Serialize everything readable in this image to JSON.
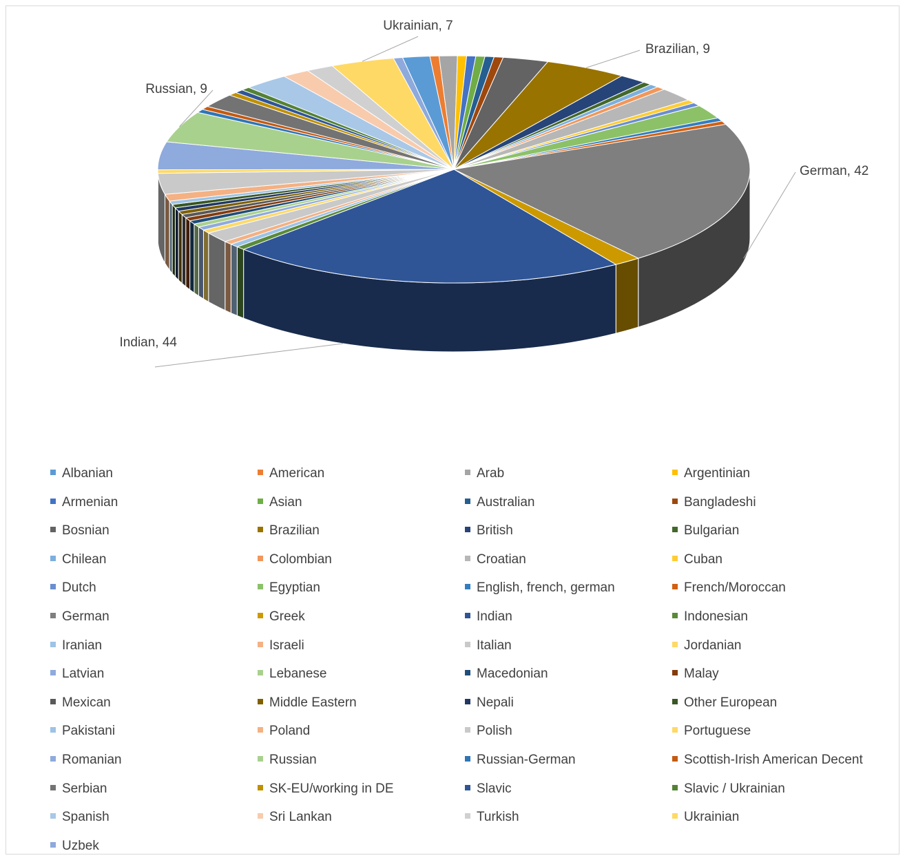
{
  "chart_data": {
    "type": "pie",
    "variant": "3d",
    "legend_position": "bottom",
    "categories": [
      "Albanian",
      "American",
      "Arab",
      "Argentinian",
      "Armenian",
      "Asian",
      "Australian",
      "Bangladeshi",
      "Bosnian",
      "Brazilian",
      "British",
      "Bulgarian",
      "Chilean",
      "Colombian",
      "Croatian",
      "Cuban",
      "Dutch",
      "Egyptian",
      "English, french, german",
      "French/Moroccan",
      "German",
      "Greek",
      "Indian",
      "Indonesian",
      "Iranian",
      "Israeli",
      "Italian",
      "Jordanian",
      "Latvian",
      "Lebanese",
      "Macedonian",
      "Malay",
      "Mexican",
      "Middle Eastern",
      "Nepali",
      "Other European",
      "Pakistani",
      "Poland",
      "Polish",
      "Portuguese",
      "Romanian",
      "Russian",
      "Russian-German",
      "Scottish-Irish American Decent",
      "Serbian",
      "SK-EU/working in DE",
      "Slavic",
      "Slavic / Ukrainian",
      "Spanish",
      "Sri Lankan",
      "Turkish",
      "Ukrainian",
      "Uzbek"
    ],
    "values": [
      3,
      1,
      2,
      1,
      1,
      1,
      1,
      1,
      5,
      9,
      3,
      1,
      1,
      1,
      4,
      1,
      1,
      4,
      1,
      1,
      42,
      3,
      44,
      1,
      1,
      1,
      3,
      1,
      1,
      1,
      1,
      1,
      1,
      1,
      1,
      1,
      1,
      2,
      6,
      1,
      8,
      9,
      1,
      1,
      4,
      1,
      1,
      1,
      5,
      3,
      3,
      7,
      1
    ],
    "colors": [
      "#5b9bd5",
      "#ed7d31",
      "#a5a5a5",
      "#ffc000",
      "#4472c4",
      "#70ad47",
      "#255e91",
      "#9e480e",
      "#636363",
      "#997300",
      "#264478",
      "#43682b",
      "#7cafdd",
      "#f1975a",
      "#b7b7b7",
      "#ffcd33",
      "#698ed0",
      "#8cc168",
      "#327dc2",
      "#d26012",
      "#7f7f7f",
      "#cc9a00",
      "#2f5597",
      "#5a8a39",
      "#9dc3e6",
      "#f4b183",
      "#c9c9c9",
      "#ffd966",
      "#8faadc",
      "#a9d18e",
      "#1f4e79",
      "#843c0c",
      "#595959",
      "#7f6000",
      "#203864",
      "#385723",
      "#9dc3e6",
      "#f4b183",
      "#c9c9c9",
      "#ffd966",
      "#8faadc",
      "#a9d18e",
      "#2e75b6",
      "#c55a11",
      "#737373",
      "#bf9000",
      "#2f5597",
      "#548235",
      "#a9c8e8",
      "#f8cbad",
      "#d0d0d0",
      "#ffd966",
      "#8ea9db"
    ],
    "data_labels": [
      {
        "text": "Ukrainian, 7",
        "category": "Ukrainian"
      },
      {
        "text": "Brazilian, 9",
        "category": "Brazilian"
      },
      {
        "text": "Russian, 9",
        "category": "Russian"
      },
      {
        "text": "German, 42",
        "category": "German"
      },
      {
        "text": "Indian, 44",
        "category": "Indian"
      }
    ]
  }
}
